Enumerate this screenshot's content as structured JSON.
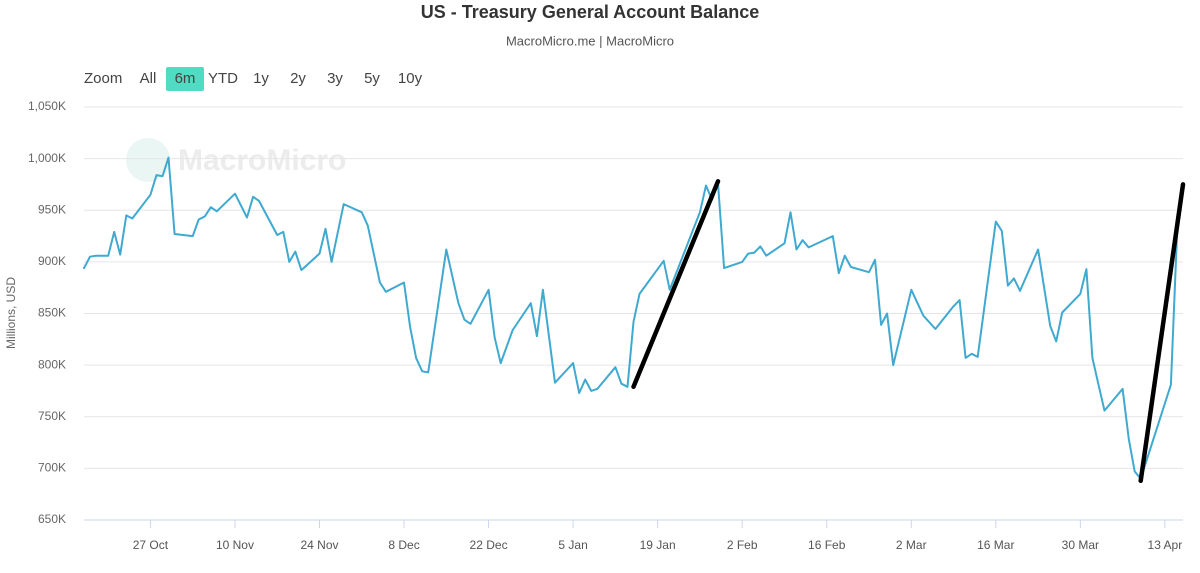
{
  "chart_data": {
    "type": "line",
    "title": "US - Treasury General Account Balance",
    "subtitle": "MacroMicro.me | MacroMicro",
    "watermark": "MacroMicro",
    "range_selector": {
      "label": "Zoom",
      "buttons": [
        "All",
        "6m",
        "YTD",
        "1y",
        "2y",
        "3y",
        "5y",
        "10y"
      ],
      "selected": "6m"
    },
    "y_axis_label": "Millions, USD",
    "xlim": [
      "10-16",
      "04-16"
    ],
    "xticks": [
      {
        "value": "10-27",
        "label": "27 Oct"
      },
      {
        "value": "11-10",
        "label": "10 Nov"
      },
      {
        "value": "11-24",
        "label": "24 Nov"
      },
      {
        "value": "12-08",
        "label": "8 Dec"
      },
      {
        "value": "12-22",
        "label": "22 Dec"
      },
      {
        "value": "01-05",
        "label": "5 Jan"
      },
      {
        "value": "01-19",
        "label": "19 Jan"
      },
      {
        "value": "02-02",
        "label": "2 Feb"
      },
      {
        "value": "02-16",
        "label": "16 Feb"
      },
      {
        "value": "03-02",
        "label": "2 Mar"
      },
      {
        "value": "03-16",
        "label": "16 Mar"
      },
      {
        "value": "03-30",
        "label": "30 Mar"
      },
      {
        "value": "04-13",
        "label": "13 Apr"
      }
    ],
    "ylim": [
      650000,
      1050000
    ],
    "yticks": [
      {
        "value": 650000,
        "label": "650K"
      },
      {
        "value": 700000,
        "label": "700K"
      },
      {
        "value": 750000,
        "label": "750K"
      },
      {
        "value": 800000,
        "label": "800K"
      },
      {
        "value": 850000,
        "label": "850K"
      },
      {
        "value": 900000,
        "label": "900K"
      },
      {
        "value": 950000,
        "label": "950K"
      },
      {
        "value": 1000000,
        "label": "1,000K"
      },
      {
        "value": 1050000,
        "label": "1,050K"
      }
    ],
    "grid": true,
    "series": [
      {
        "color": "#3fa9d0",
        "x": [
          "10-16",
          "10-17",
          "10-18",
          "10-20",
          "10-21",
          "10-22",
          "10-23",
          "10-24",
          "10-27",
          "10-28",
          "10-29",
          "10-30",
          "10-31",
          "11-03",
          "11-04",
          "11-05",
          "11-06",
          "11-07",
          "11-10",
          "11-12",
          "11-13",
          "11-14",
          "11-17",
          "11-18",
          "11-19",
          "11-20",
          "11-21",
          "11-24",
          "11-25",
          "11-26",
          "11-28",
          "12-01",
          "12-02",
          "12-04",
          "12-05",
          "12-08",
          "12-09",
          "12-10",
          "12-11",
          "12-12",
          "12-15",
          "12-17",
          "12-18",
          "12-19",
          "12-22",
          "12-23",
          "12-24",
          "12-26",
          "12-29",
          "12-30",
          "12-31",
          "01-02",
          "01-05",
          "01-06",
          "01-07",
          "01-08",
          "01-09",
          "01-12",
          "01-13",
          "01-14",
          "01-15",
          "01-16",
          "01-20",
          "01-21",
          "01-26",
          "01-27",
          "01-28",
          "01-29",
          "01-30",
          "02-02",
          "02-03",
          "02-04",
          "02-05",
          "02-06",
          "02-09",
          "02-10",
          "02-11",
          "02-12",
          "02-13",
          "02-17",
          "02-18",
          "02-19",
          "02-20",
          "02-23",
          "02-24",
          "02-25",
          "02-26",
          "02-27",
          "03-02",
          "03-04",
          "03-06",
          "03-09",
          "03-10",
          "03-11",
          "03-12",
          "03-13",
          "03-16",
          "03-17",
          "03-18",
          "03-19",
          "03-20",
          "03-23",
          "03-25",
          "03-26",
          "03-27",
          "03-30",
          "03-31",
          "04-01",
          "04-02",
          "04-03",
          "04-06",
          "04-07",
          "04-08",
          "04-09",
          "04-14",
          "04-15",
          "04-16"
        ],
        "values": [
          894000,
          905000,
          906000,
          906000,
          929000,
          907000,
          945000,
          942000,
          965000,
          984000,
          983000,
          1001000,
          927000,
          925000,
          941000,
          944000,
          953000,
          949000,
          966000,
          943000,
          963000,
          959000,
          926000,
          929000,
          900000,
          910000,
          892000,
          908000,
          932000,
          900000,
          956000,
          948000,
          935000,
          880000,
          871000,
          880000,
          837000,
          807000,
          794000,
          793000,
          912000,
          860000,
          844000,
          840000,
          873000,
          827000,
          802000,
          834000,
          860000,
          828000,
          873000,
          783000,
          802000,
          773000,
          786000,
          775000,
          777000,
          798000,
          782000,
          779000,
          842000,
          869000,
          901000,
          873000,
          948000,
          974000,
          960000,
          976000,
          894000,
          900000,
          908000,
          909000,
          915000,
          906000,
          918000,
          948000,
          912000,
          921000,
          914000,
          925000,
          889000,
          906000,
          895000,
          890000,
          902000,
          839000,
          850000,
          800000,
          873000,
          848000,
          835000,
          857000,
          863000,
          807000,
          811000,
          808000,
          939000,
          930000,
          877000,
          884000,
          872000,
          912000,
          838000,
          823000,
          851000,
          869000,
          893000,
          807000,
          781000,
          756000,
          777000,
          729000,
          697000,
          690000,
          781000,
          926000,
          970000
        ]
      },
      {
        "color": "#000000",
        "x": [
          "01-15",
          "01-29"
        ],
        "values": [
          779000,
          978000
        ]
      },
      {
        "color": "#000000",
        "x": [
          "04-09",
          "04-16"
        ],
        "values": [
          688000,
          975000
        ]
      }
    ]
  }
}
